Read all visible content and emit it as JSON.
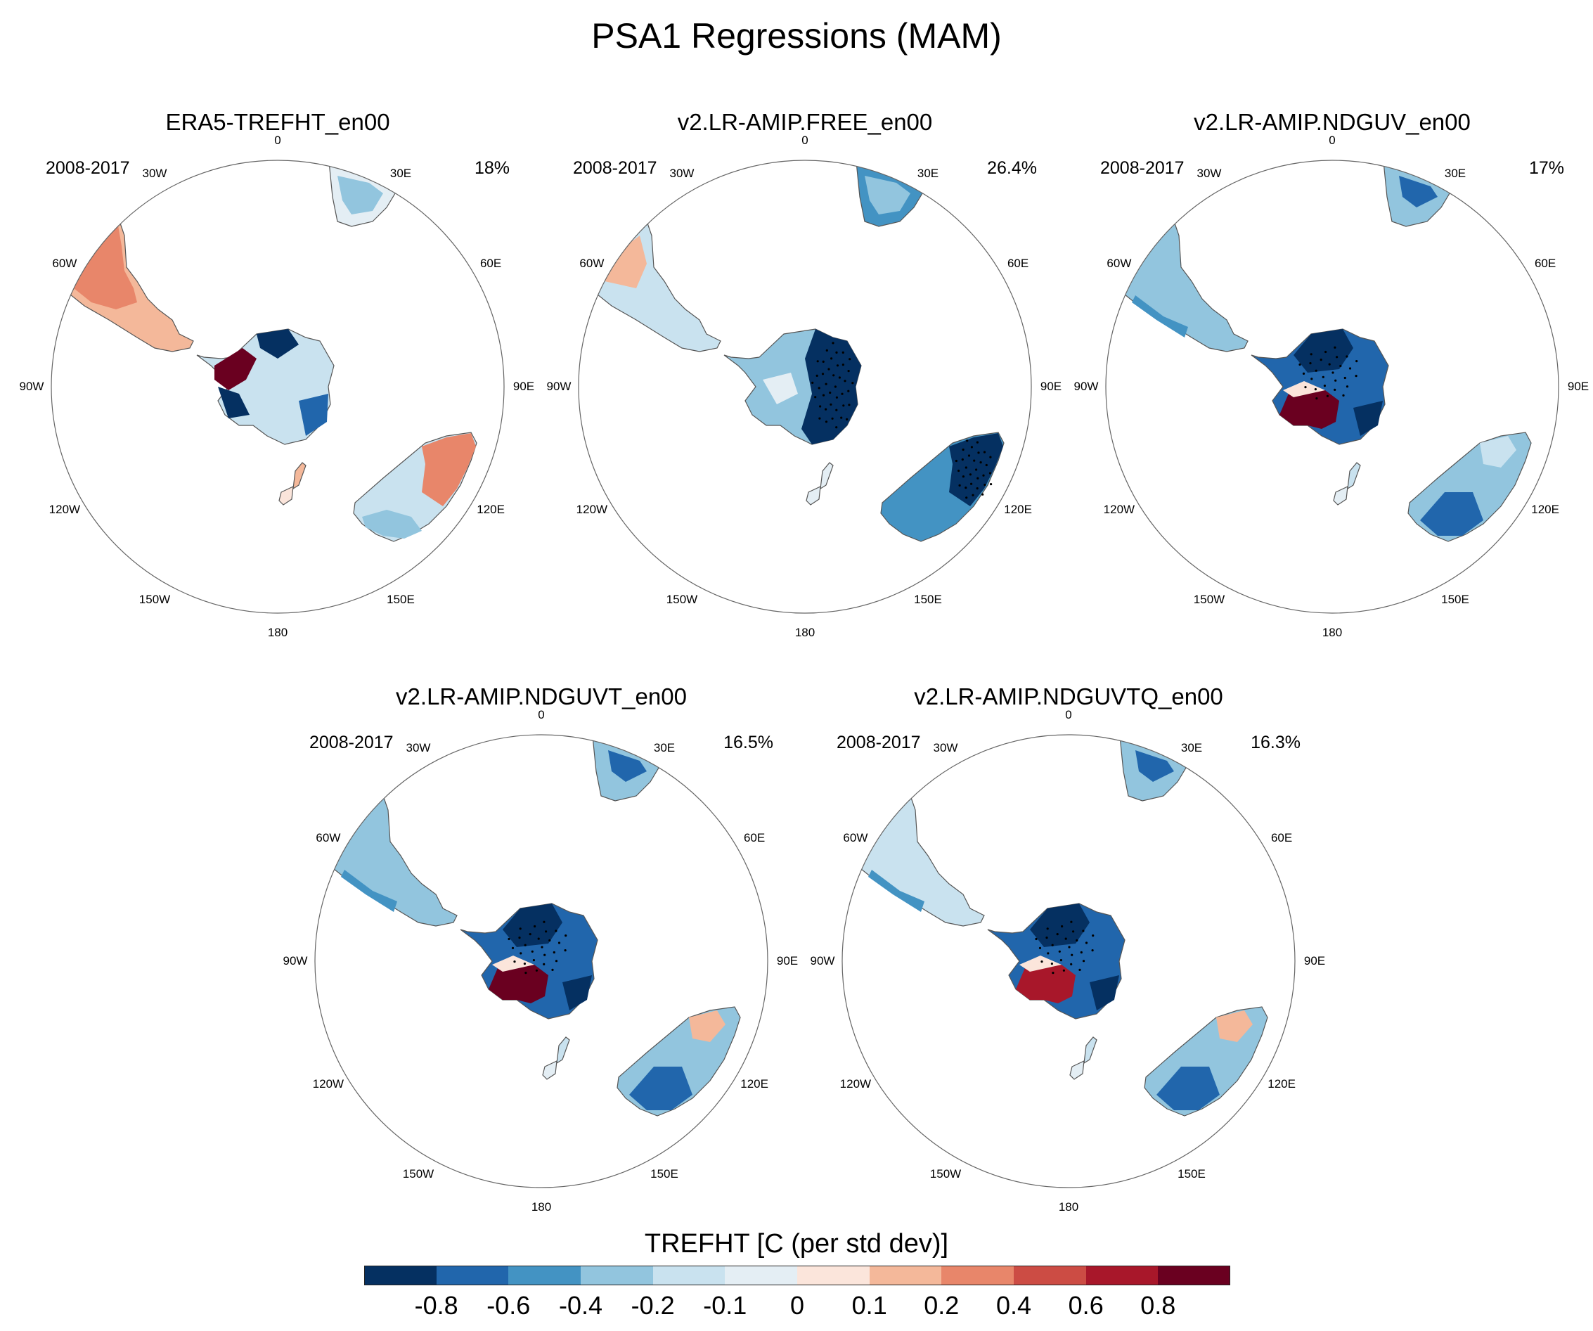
{
  "figure": {
    "title": "PSA1 Regressions (MAM)"
  },
  "map_labels": [
    "0",
    "30E",
    "60E",
    "90E",
    "120E",
    "150E",
    "180",
    "150W",
    "120W",
    "90W",
    "60W",
    "30W"
  ],
  "panels": [
    {
      "title": "ERA5-TREFHT_en00",
      "period": "2008-2017",
      "percent": "18%",
      "pattern": "era5"
    },
    {
      "title": "v2.LR-AMIP.FREE_en00",
      "period": "2008-2017",
      "percent": "26.4%",
      "pattern": "free"
    },
    {
      "title": "v2.LR-AMIP.NDGUV_en00",
      "period": "2008-2017",
      "percent": "17%",
      "pattern": "nduv"
    },
    {
      "title": "v2.LR-AMIP.NDGUVT_en00",
      "period": "2008-2017",
      "percent": "16.5%",
      "pattern": "nduvt"
    },
    {
      "title": "v2.LR-AMIP.NDGUVTQ_en00",
      "period": "2008-2017",
      "percent": "16.3%",
      "pattern": "nduvtq"
    }
  ],
  "colorbar": {
    "title": "TREFHT [C (per std dev)]",
    "tick_labels": [
      "-0.8",
      "-0.6",
      "-0.4",
      "-0.2",
      "-0.1",
      "0",
      "0.1",
      "0.2",
      "0.4",
      "0.6",
      "0.8"
    ],
    "colors": [
      "#053061",
      "#2166ac",
      "#4393c3",
      "#92c5de",
      "#c9e2ef",
      "#e4eef4",
      "#fbe5db",
      "#f4b89a",
      "#e8866a",
      "#cc4c44",
      "#a8172a",
      "#6a0020"
    ]
  }
}
